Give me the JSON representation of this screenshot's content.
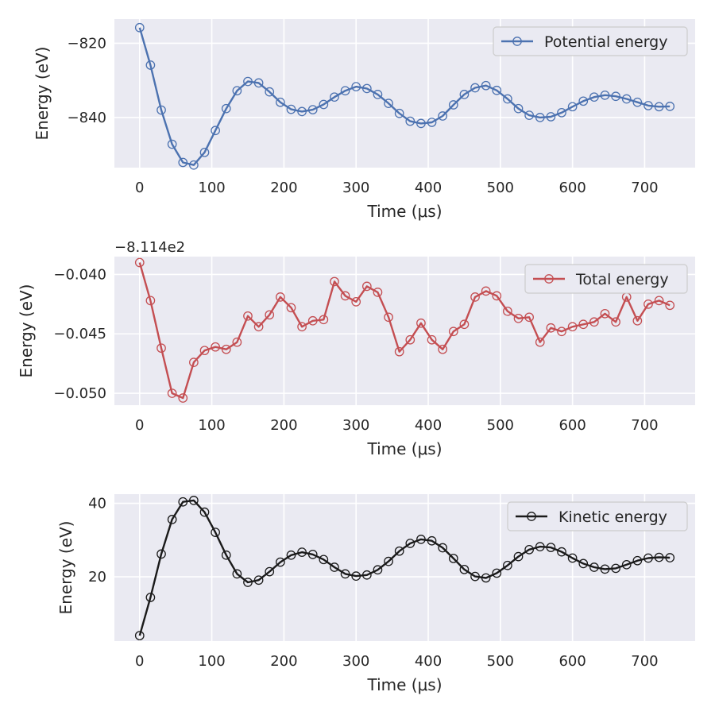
{
  "chart_data": [
    {
      "type": "line",
      "xlabel": "Time (μs)",
      "ylabel": "Energy (eV)",
      "xlim": [
        -35,
        770
      ],
      "ylim": [
        -853.5,
        -813.5
      ],
      "xticks": [
        0,
        100,
        200,
        300,
        400,
        500,
        600,
        700
      ],
      "yticks": [
        -840,
        -820
      ],
      "ytick_labels": [
        "−840",
        "−820"
      ],
      "offset_text": "",
      "legend_position": "top-right",
      "series": [
        {
          "name": "Potential energy",
          "color": "#4c72b0",
          "marker": "open-circle",
          "x": [
            0,
            15,
            30,
            45,
            60,
            75,
            90,
            105,
            120,
            135,
            150,
            165,
            180,
            195,
            210,
            225,
            240,
            255,
            270,
            285,
            300,
            315,
            330,
            345,
            360,
            375,
            390,
            405,
            420,
            435,
            450,
            465,
            480,
            495,
            510,
            525,
            540,
            555,
            570,
            585,
            600,
            615,
            630,
            645,
            660,
            675,
            690,
            705,
            720,
            735
          ],
          "y": [
            -815.8,
            -825.9,
            -838.0,
            -847.2,
            -852.1,
            -852.8,
            -849.4,
            -843.5,
            -837.6,
            -832.8,
            -830.3,
            -830.7,
            -833.1,
            -835.9,
            -837.8,
            -838.4,
            -837.9,
            -836.5,
            -834.5,
            -832.8,
            -831.7,
            -832.2,
            -833.8,
            -836.2,
            -838.9,
            -841.0,
            -841.6,
            -841.3,
            -839.6,
            -836.6,
            -833.8,
            -832.0,
            -831.4,
            -832.7,
            -835.0,
            -837.6,
            -839.4,
            -840.0,
            -839.8,
            -838.7,
            -837.1,
            -835.6,
            -834.5,
            -834.0,
            -834.3,
            -835.0,
            -835.9,
            -836.8,
            -837.1,
            -837.0
          ]
        }
      ]
    },
    {
      "type": "line",
      "xlabel": "Time (μs)",
      "ylabel": "Energy (eV)",
      "xlim": [
        -35,
        770
      ],
      "ylim": [
        -0.051,
        -0.0385
      ],
      "xticks": [
        0,
        100,
        200,
        300,
        400,
        500,
        600,
        700
      ],
      "yticks": [
        -0.05,
        -0.045,
        -0.04
      ],
      "ytick_labels": [
        "−0.050",
        "−0.045",
        "−0.040"
      ],
      "offset_text": "−8.114e2",
      "legend_position": "top-right",
      "series": [
        {
          "name": "Total energy",
          "color": "#c44e52",
          "marker": "open-circle",
          "x": [
            0,
            15,
            30,
            45,
            60,
            75,
            90,
            105,
            120,
            135,
            150,
            165,
            180,
            195,
            210,
            225,
            240,
            255,
            270,
            285,
            300,
            315,
            330,
            345,
            360,
            375,
            390,
            405,
            420,
            435,
            450,
            465,
            480,
            495,
            510,
            525,
            540,
            555,
            570,
            585,
            600,
            615,
            630,
            645,
            660,
            675,
            690,
            705,
            720,
            735
          ],
          "y": [
            -0.039,
            -0.0422,
            -0.0462,
            -0.05,
            -0.0504,
            -0.0474,
            -0.0464,
            -0.0461,
            -0.0463,
            -0.0457,
            -0.0435,
            -0.0444,
            -0.0434,
            -0.0419,
            -0.0428,
            -0.0444,
            -0.0439,
            -0.0438,
            -0.0406,
            -0.0418,
            -0.0423,
            -0.041,
            -0.0415,
            -0.0436,
            -0.0465,
            -0.0455,
            -0.0441,
            -0.0455,
            -0.0463,
            -0.0448,
            -0.0442,
            -0.0419,
            -0.0414,
            -0.0418,
            -0.0431,
            -0.0437,
            -0.0436,
            -0.0457,
            -0.0445,
            -0.0448,
            -0.0444,
            -0.0442,
            -0.044,
            -0.0433,
            -0.044,
            -0.0419,
            -0.0439,
            -0.0425,
            -0.0422,
            -0.0426
          ]
        }
      ]
    },
    {
      "type": "line",
      "xlabel": "Time (μs)",
      "ylabel": "Energy (eV)",
      "xlim": [
        -35,
        770
      ],
      "ylim": [
        2.5,
        42.5
      ],
      "xticks": [
        0,
        100,
        200,
        300,
        400,
        500,
        600,
        700
      ],
      "yticks": [
        20,
        40
      ],
      "ytick_labels": [
        "20",
        "40"
      ],
      "offset_text": "",
      "legend_position": "top-right",
      "series": [
        {
          "name": "Kinetic energy",
          "color": "#1a1a1a",
          "marker": "open-circle",
          "x": [
            0,
            15,
            30,
            45,
            60,
            75,
            90,
            105,
            120,
            135,
            150,
            165,
            180,
            195,
            210,
            225,
            240,
            255,
            270,
            285,
            300,
            315,
            330,
            345,
            360,
            375,
            390,
            405,
            420,
            435,
            450,
            465,
            480,
            495,
            510,
            525,
            540,
            555,
            570,
            585,
            600,
            615,
            630,
            645,
            660,
            675,
            690,
            705,
            720,
            735
          ],
          "y": [
            4.0,
            14.4,
            26.2,
            35.6,
            40.4,
            40.8,
            37.6,
            32.1,
            25.9,
            20.8,
            18.5,
            19.1,
            21.4,
            24.0,
            25.9,
            26.7,
            26.1,
            24.7,
            22.6,
            20.8,
            20.2,
            20.5,
            21.9,
            24.2,
            27.0,
            29.1,
            30.2,
            29.8,
            27.9,
            25.0,
            22.0,
            20.1,
            19.7,
            21.0,
            23.1,
            25.5,
            27.4,
            28.2,
            28.0,
            26.8,
            25.1,
            23.6,
            22.6,
            22.1,
            22.3,
            23.3,
            24.4,
            25.1,
            25.3,
            25.2
          ]
        }
      ]
    }
  ]
}
